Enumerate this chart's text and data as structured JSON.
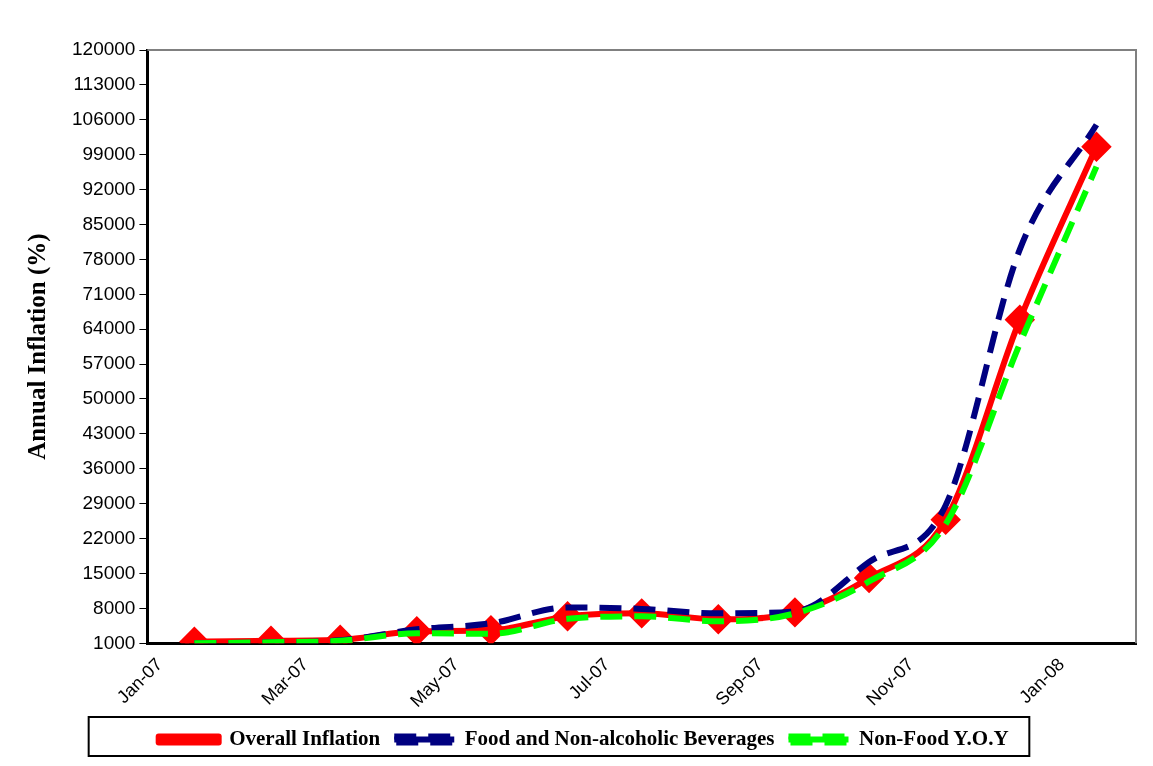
{
  "chart_data": {
    "type": "line",
    "ylabel": "Annual Inflation (%)",
    "x": [
      "2007-01-15",
      "2007-02-15",
      "2007-03-15",
      "2007-04-15",
      "2007-05-15",
      "2007-06-15",
      "2007-07-15",
      "2007-08-15",
      "2007-09-15",
      "2007-10-15",
      "2007-11-15",
      "2007-12-15",
      "2008-01-15"
    ],
    "series": [
      {
        "name": "Overall Inflation",
        "color": "#ff0000",
        "line_style": "solid",
        "marker": "diamond",
        "values": [
          1300,
          1500,
          1700,
          3400,
          3600,
          6400,
          7000,
          5800,
          7200,
          14100,
          25800,
          65900,
          100600
        ]
      },
      {
        "name": "Food and Non-alcoholic Beverages",
        "color": "#000080",
        "line_style": "dashed",
        "marker": "none",
        "values": [
          1000,
          1200,
          1600,
          3800,
          5000,
          8200,
          7900,
          7000,
          7400,
          17300,
          28700,
          80000,
          105000
        ]
      },
      {
        "name": "Non-Food Y.O.Y",
        "color": "#00ff00",
        "line_style": "dashed",
        "marker": "none",
        "values": [
          1000,
          1200,
          1500,
          3000,
          2900,
          5900,
          6400,
          5400,
          7000,
          13400,
          24900,
          61100,
          96600
        ]
      }
    ],
    "xlim": [
      "2006-12-27",
      "2008-01-31"
    ],
    "xticks": [
      {
        "value": "2007-01-01",
        "label": "Jan-07"
      },
      {
        "value": "2007-03-01",
        "label": "Mar-07"
      },
      {
        "value": "2007-05-01",
        "label": "May-07"
      },
      {
        "value": "2007-07-01",
        "label": "Jul-07"
      },
      {
        "value": "2007-09-01",
        "label": "Sep-07"
      },
      {
        "value": "2007-11-01",
        "label": "Nov-07"
      },
      {
        "value": "2008-01-01",
        "label": "Jan-08"
      }
    ],
    "ylim": [
      1000,
      120000
    ],
    "yticks": [
      1000,
      8000,
      15000,
      22000,
      29000,
      36000,
      43000,
      50000,
      57000,
      64000,
      71000,
      78000,
      85000,
      92000,
      99000,
      106000,
      113000,
      120000
    ],
    "grid": false,
    "legend": "bottom"
  }
}
